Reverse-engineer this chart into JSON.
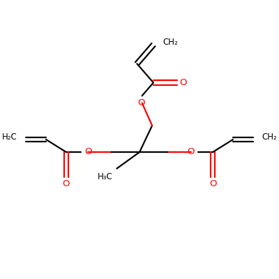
{
  "bg_color": "#ffffff",
  "bond_color": "#000000",
  "oxygen_color": "#ff0000",
  "line_width": 1.6,
  "figsize": [
    4.0,
    4.0
  ],
  "dpi": 100,
  "xlim": [
    0,
    10
  ],
  "ylim": [
    0,
    10
  ]
}
